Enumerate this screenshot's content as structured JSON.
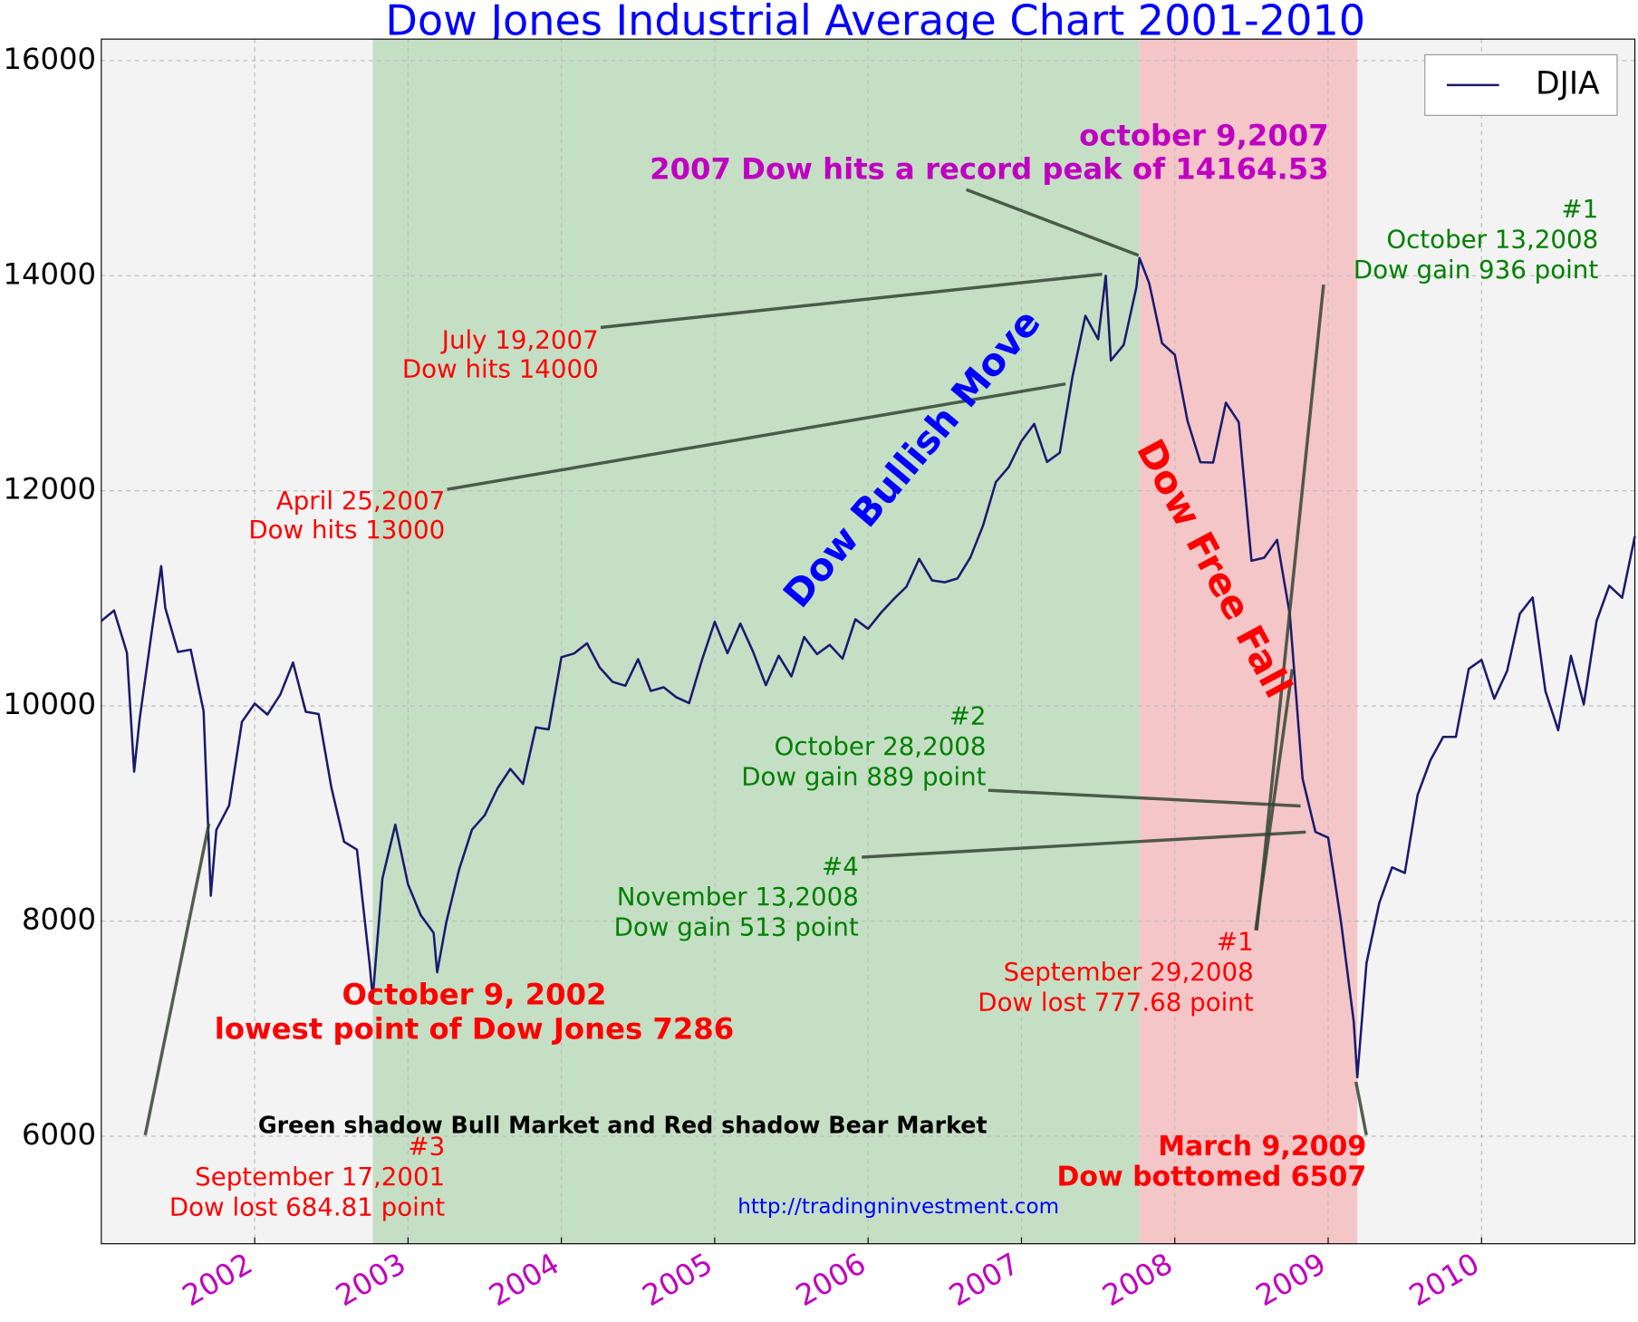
{
  "chart_data": {
    "type": "line",
    "title": "Dow Jones Industrial Average Chart 2001-2010",
    "x": [
      2001.0,
      2001.083,
      2001.167,
      2001.214,
      2001.25,
      2001.333,
      2001.39,
      2001.417,
      2001.5,
      2001.583,
      2001.667,
      2001.714,
      2001.75,
      2001.833,
      2001.917,
      2002.0,
      2002.083,
      2002.167,
      2002.25,
      2002.333,
      2002.417,
      2002.5,
      2002.583,
      2002.667,
      2002.75,
      2002.77,
      2002.833,
      2002.917,
      2003.0,
      2003.083,
      2003.167,
      2003.19,
      2003.25,
      2003.333,
      2003.417,
      2003.5,
      2003.583,
      2003.667,
      2003.75,
      2003.833,
      2003.917,
      2004.0,
      2004.083,
      2004.167,
      2004.25,
      2004.333,
      2004.417,
      2004.5,
      2004.583,
      2004.667,
      2004.75,
      2004.833,
      2004.917,
      2005.0,
      2005.083,
      2005.167,
      2005.25,
      2005.333,
      2005.417,
      2005.5,
      2005.583,
      2005.667,
      2005.75,
      2005.833,
      2005.917,
      2006.0,
      2006.083,
      2006.167,
      2006.25,
      2006.333,
      2006.417,
      2006.5,
      2006.583,
      2006.667,
      2006.75,
      2006.833,
      2006.917,
      2007.0,
      2007.083,
      2007.167,
      2007.25,
      2007.333,
      2007.417,
      2007.5,
      2007.55,
      2007.583,
      2007.667,
      2007.75,
      2007.77,
      2007.833,
      2007.917,
      2008.0,
      2008.083,
      2008.167,
      2008.25,
      2008.333,
      2008.417,
      2008.5,
      2008.583,
      2008.667,
      2008.75,
      2008.833,
      2008.917,
      2009.0,
      2009.083,
      2009.167,
      2009.19,
      2009.25,
      2009.333,
      2009.417,
      2009.5,
      2009.583,
      2009.667,
      2009.75,
      2009.833,
      2009.917,
      2010.0,
      2010.083,
      2010.167,
      2010.25,
      2010.333,
      2010.417,
      2010.5,
      2010.583,
      2010.667,
      2010.75,
      2010.833,
      2010.917,
      2011.0
    ],
    "series": [
      {
        "name": "DJIA",
        "color": "#1a1a6e",
        "values": [
          10790,
          10888,
          10495,
          9390,
          9879,
          10735,
          11300,
          10912,
          10502,
          10523,
          9950,
          8236,
          8848,
          9075,
          9852,
          10022,
          9920,
          10106,
          10404,
          9946,
          9925,
          9243,
          8737,
          8664,
          7592,
          7286,
          8397,
          8896,
          8342,
          8054,
          7891,
          7524,
          7992,
          8480,
          8850,
          8985,
          9233,
          9415,
          9275,
          9801,
          9782,
          10453,
          10488,
          10583,
          10357,
          10225,
          10188,
          10435,
          10140,
          10174,
          10080,
          10027,
          10428,
          10783,
          10490,
          10766,
          10504,
          10193,
          10467,
          10275,
          10641,
          10482,
          10568,
          10440,
          10806,
          10718,
          10865,
          10993,
          11109,
          11367,
          11168,
          11150,
          11186,
          11381,
          11679,
          12081,
          12221,
          12463,
          12622,
          12269,
          12354,
          13063,
          13628,
          13409,
          14000,
          13212,
          13358,
          13896,
          14164,
          13930,
          13372,
          13265,
          12650,
          12266,
          12263,
          12820,
          12638,
          11350,
          11378,
          11544,
          10851,
          9325,
          8829,
          8776,
          8001,
          7063,
          6547,
          7609,
          8168,
          8500,
          8447,
          9172,
          9496,
          9712,
          9713,
          10345,
          10428,
          10067,
          10325,
          10857,
          11009,
          10137,
          9774,
          10466,
          10015,
          10788,
          11118,
          11006,
          11578
        ]
      }
    ],
    "xlim": [
      2001,
      2011
    ],
    "ylim": [
      5000,
      16200
    ],
    "xticks": [
      2002,
      2003,
      2004,
      2005,
      2006,
      2007,
      2008,
      2009,
      2010
    ],
    "yticks": [
      6000,
      8000,
      10000,
      12000,
      14000,
      16000
    ],
    "grid": true,
    "legend": "upper right",
    "spans": [
      {
        "start": 2002.77,
        "end": 2007.77,
        "color": "#c5dfc5"
      },
      {
        "start": 2007.77,
        "end": 2009.19,
        "color": "#f4c6c8"
      }
    ],
    "annotations": [
      {
        "lines": [
          "october 9,2007",
          "2007 Dow  hits a record peak of 14164.53"
        ],
        "color": "#c000c0"
      },
      {
        "lines": [
          "#1",
          "October 13,2008",
          "Dow gain 936 point"
        ],
        "color": "#008000"
      },
      {
        "lines": [
          "July 19,2007",
          "Dow hits 14000"
        ],
        "color": "#ff0000"
      },
      {
        "lines": [
          "April 25,2007",
          "Dow hits 13000"
        ],
        "color": "#ff0000"
      },
      {
        "lines": [
          "#2",
          "October 28,2008",
          "Dow gain 889 point"
        ],
        "color": "#008000"
      },
      {
        "lines": [
          "#4",
          "November 13,2008",
          "Dow gain 513 point"
        ],
        "color": "#008000"
      },
      {
        "lines": [
          "#1",
          "September 29,2008",
          "Dow lost 777.68 point"
        ],
        "color": "#ff0000"
      },
      {
        "lines": [
          "October 9, 2002",
          "lowest point of Dow Jones 7286"
        ],
        "color": "#ff0000"
      },
      {
        "lines": [
          "Green shadow Bull Market and Red shadow Bear Market"
        ],
        "color": "#000000"
      },
      {
        "lines": [
          "#3",
          "September 17,2001",
          "Dow lost 684.81 point"
        ],
        "color": "#ff0000"
      },
      {
        "lines": [
          "March 9,2009",
          "Dow bottomed 6507"
        ],
        "color": "#ff0000"
      },
      {
        "lines": [
          "http://tradingninvestment.com"
        ],
        "color": "#0000ff"
      },
      {
        "lines": [
          "Dow Bullish Move"
        ],
        "color": "#0000ff"
      },
      {
        "lines": [
          "Dow Free Fall"
        ],
        "color": "#ff0000"
      }
    ]
  }
}
